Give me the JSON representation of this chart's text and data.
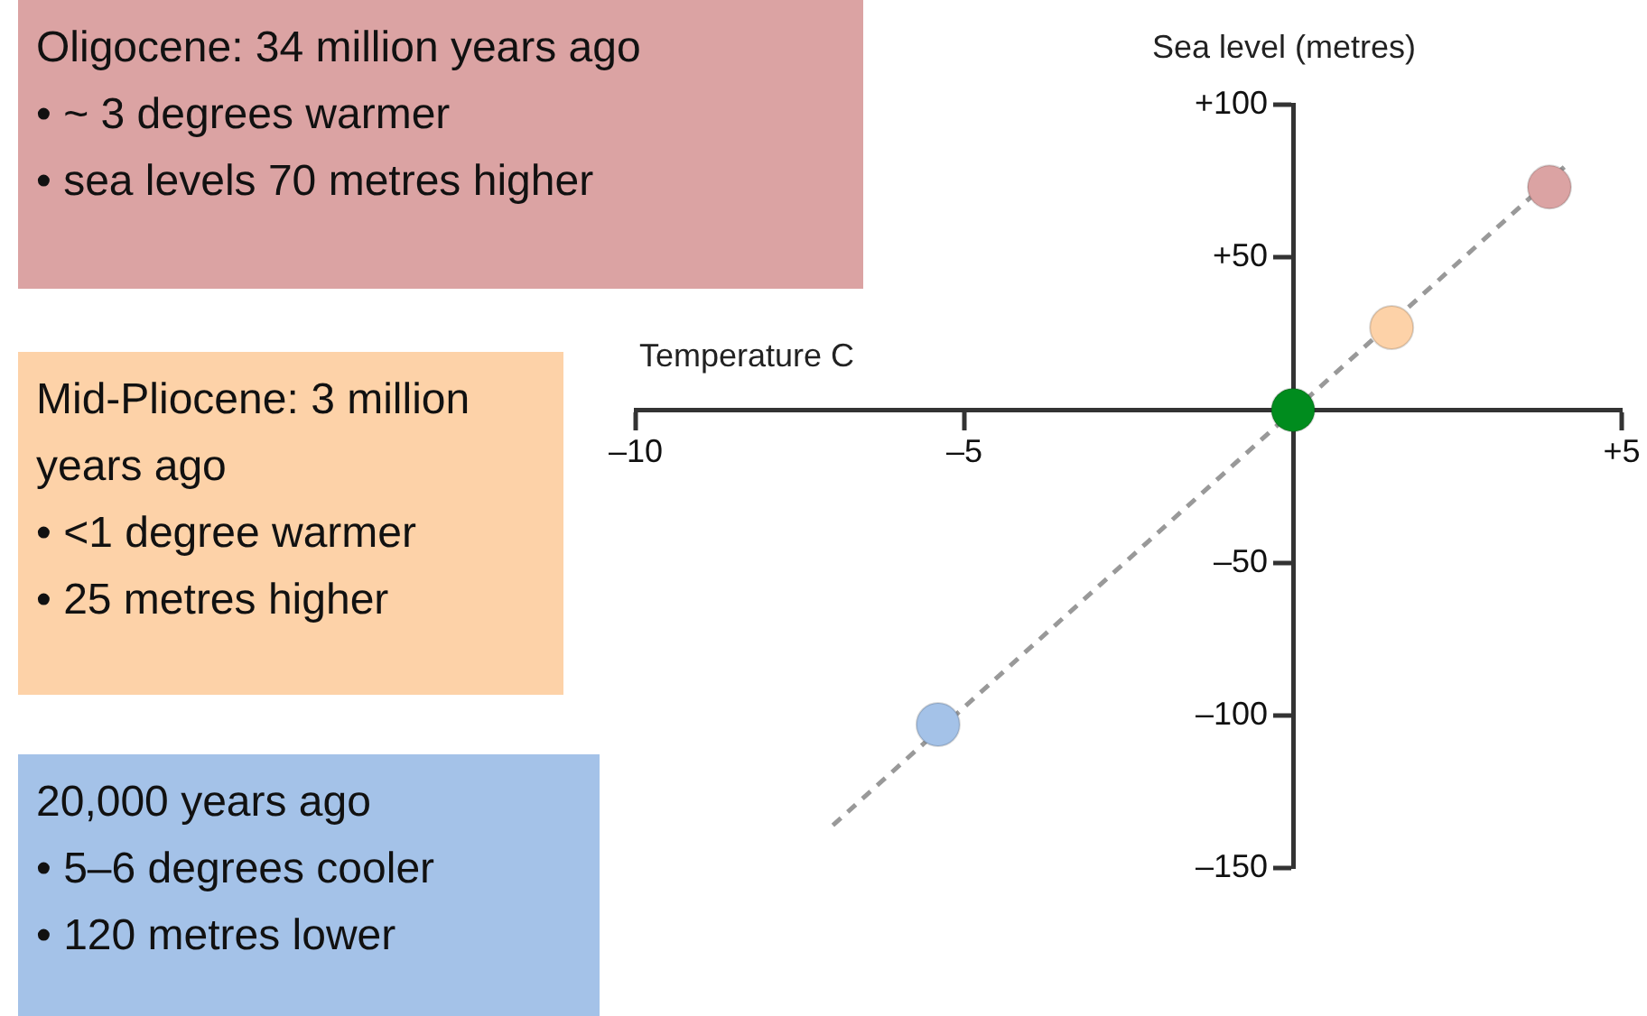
{
  "chart_data": {
    "type": "scatter",
    "xlabel": "Temperature C",
    "ylabel": "Sea level (metres)",
    "xlim": [
      -10,
      5
    ],
    "ylim": [
      -150,
      100
    ],
    "xticks": [
      {
        "value": -10,
        "label": "–10"
      },
      {
        "value": -5,
        "label": "–5"
      },
      {
        "value": 5,
        "label": "+5"
      }
    ],
    "yticks": [
      {
        "value": -150,
        "label": "–150"
      },
      {
        "value": -100,
        "label": "–100"
      },
      {
        "value": -50,
        "label": "–50"
      },
      {
        "value": 50,
        "label": "+50"
      },
      {
        "value": 100,
        "label": "+100"
      }
    ],
    "legend": false,
    "grid": false,
    "marker": "circle",
    "series": [
      {
        "type": "line",
        "x": [
          -7.0,
          4.2
        ],
        "values": [
          -136,
          81
        ],
        "color": "#999999",
        "line_style": "dashed",
        "marker": "none"
      },
      {
        "type": "scatter",
        "x": [
          3.9
        ],
        "values": [
          73
        ],
        "color": "#dba3a3"
      },
      {
        "type": "scatter",
        "x": [
          1.5
        ],
        "values": [
          27
        ],
        "color": "#fdd2a8"
      },
      {
        "type": "scatter",
        "x": [
          -5.4
        ],
        "values": [
          -103
        ],
        "color": "#a4c2e8"
      },
      {
        "type": "scatter",
        "x": [
          0
        ],
        "values": [
          0
        ],
        "color": "#008c1e"
      }
    ],
    "annotations": [
      "Oligocene: 34 million years ago\n• ~ 3 degrees warmer\n• sea levels 70 metres higher",
      "Mid-Pliocene: 3 million years ago\n• <1 degree warmer\n• 25 metres higher",
      "20,000 years ago\n• 5–6 degrees cooler\n• 120 metres lower"
    ]
  }
}
